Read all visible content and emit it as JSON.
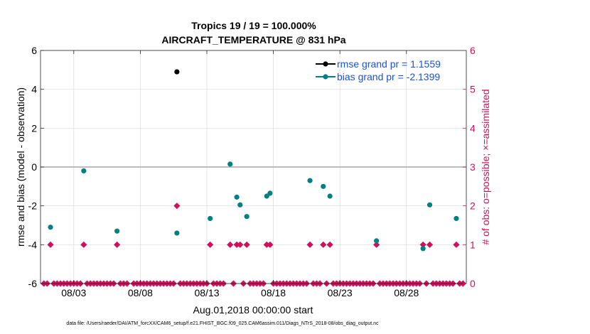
{
  "chart_data": {
    "type": "scatter",
    "title": "Tropics 19 / 19 = 100.000%",
    "subtitle": "AIRCRAFT_TEMPERATURE @ 831 hPa",
    "xlabel": "Aug.01,2018 00:00:00 start",
    "ylabel_left": "rmse and bias (model - observation)",
    "ylabel_right": "# of obs: o=possible; ×=assimilated",
    "xlim": [
      0,
      32
    ],
    "ylim_left": [
      -6,
      6
    ],
    "ylim_right": [
      0,
      6
    ],
    "x_ticks": [
      {
        "value": 2.5,
        "label": "08/03"
      },
      {
        "value": 7.5,
        "label": "08/08"
      },
      {
        "value": 12.5,
        "label": "08/13"
      },
      {
        "value": 17.5,
        "label": "08/18"
      },
      {
        "value": 22.5,
        "label": "08/23"
      },
      {
        "value": 27.5,
        "label": "08/28"
      }
    ],
    "y_ticks_left": [
      -6,
      -4,
      -2,
      0,
      2,
      4,
      6
    ],
    "y_ticks_right": [
      0,
      1,
      2,
      3,
      4,
      5,
      6
    ],
    "zero_line": 0,
    "series": [
      {
        "name": "rmse",
        "legend": "rmse grand pr = 1.1559",
        "color": "#000000",
        "axis": "left",
        "points": [
          [
            10.25,
            4.9
          ]
        ]
      },
      {
        "name": "bias",
        "legend": "bias grand pr = -2.1399",
        "color": "#008080",
        "axis": "left",
        "points": [
          [
            0.75,
            -3.1
          ],
          [
            3.25,
            -0.2
          ],
          [
            5.75,
            -3.3
          ],
          [
            10.25,
            -3.4
          ],
          [
            12.75,
            -2.65
          ],
          [
            14.25,
            0.15
          ],
          [
            14.75,
            -1.55
          ],
          [
            15.0,
            -1.95
          ],
          [
            15.5,
            -2.55
          ],
          [
            17.0,
            -1.5
          ],
          [
            17.25,
            -1.35
          ],
          [
            20.25,
            -0.7
          ],
          [
            21.25,
            -1.0
          ],
          [
            21.75,
            -1.5
          ],
          [
            25.25,
            -3.8
          ],
          [
            28.75,
            -4.2
          ],
          [
            29.25,
            -1.95
          ],
          [
            31.25,
            -2.65
          ]
        ]
      },
      {
        "name": "obs_count",
        "color": "#d0105a",
        "axis": "right",
        "points": [
          [
            0.25,
            0
          ],
          [
            0.5,
            0
          ],
          [
            0.75,
            1
          ],
          [
            1.0,
            0
          ],
          [
            1.25,
            0
          ],
          [
            1.5,
            0
          ],
          [
            1.75,
            0
          ],
          [
            2.0,
            0
          ],
          [
            2.25,
            0
          ],
          [
            2.5,
            0
          ],
          [
            2.75,
            0
          ],
          [
            3.0,
            0
          ],
          [
            3.25,
            1
          ],
          [
            3.5,
            0
          ],
          [
            3.75,
            0
          ],
          [
            4.0,
            0
          ],
          [
            4.25,
            0
          ],
          [
            4.5,
            0
          ],
          [
            4.75,
            0
          ],
          [
            5.0,
            0
          ],
          [
            5.25,
            0
          ],
          [
            5.5,
            0
          ],
          [
            5.75,
            1
          ],
          [
            6.0,
            0
          ],
          [
            6.25,
            0
          ],
          [
            6.5,
            0
          ],
          [
            7.0,
            0
          ],
          [
            7.25,
            0
          ],
          [
            7.5,
            0
          ],
          [
            7.75,
            0
          ],
          [
            8.0,
            0
          ],
          [
            8.25,
            0
          ],
          [
            8.5,
            0
          ],
          [
            8.75,
            0
          ],
          [
            9.0,
            0
          ],
          [
            9.25,
            0
          ],
          [
            9.5,
            0
          ],
          [
            9.75,
            0
          ],
          [
            10.0,
            0
          ],
          [
            10.25,
            2
          ],
          [
            10.5,
            0
          ],
          [
            10.75,
            0
          ],
          [
            11.0,
            0
          ],
          [
            11.25,
            0
          ],
          [
            11.5,
            0
          ],
          [
            11.75,
            0
          ],
          [
            12.0,
            0
          ],
          [
            12.25,
            0
          ],
          [
            12.5,
            0
          ],
          [
            12.75,
            1
          ],
          [
            13.0,
            0
          ],
          [
            13.25,
            0
          ],
          [
            13.5,
            0
          ],
          [
            13.75,
            0
          ],
          [
            14.25,
            1
          ],
          [
            14.5,
            0
          ],
          [
            14.75,
            1
          ],
          [
            15.0,
            1
          ],
          [
            15.25,
            0
          ],
          [
            15.5,
            1
          ],
          [
            15.75,
            0
          ],
          [
            16.0,
            0
          ],
          [
            16.25,
            0
          ],
          [
            16.5,
            0
          ],
          [
            16.75,
            0
          ],
          [
            17.0,
            1
          ],
          [
            17.25,
            1
          ],
          [
            17.5,
            0
          ],
          [
            17.75,
            0
          ],
          [
            18.0,
            0
          ],
          [
            18.25,
            0
          ],
          [
            18.5,
            0
          ],
          [
            18.75,
            0
          ],
          [
            19.0,
            0
          ],
          [
            19.25,
            0
          ],
          [
            19.5,
            0
          ],
          [
            19.75,
            0
          ],
          [
            20.0,
            0
          ],
          [
            20.25,
            1
          ],
          [
            20.5,
            0
          ],
          [
            20.75,
            0
          ],
          [
            21.0,
            0
          ],
          [
            21.25,
            1
          ],
          [
            21.5,
            0
          ],
          [
            21.75,
            1
          ],
          [
            22.0,
            0
          ],
          [
            22.25,
            0
          ],
          [
            22.5,
            0
          ],
          [
            22.75,
            0
          ],
          [
            23.0,
            0
          ],
          [
            23.25,
            0
          ],
          [
            23.5,
            0
          ],
          [
            23.75,
            0
          ],
          [
            24.0,
            0
          ],
          [
            24.25,
            0
          ],
          [
            24.5,
            0
          ],
          [
            24.75,
            0
          ],
          [
            25.0,
            0
          ],
          [
            25.25,
            1
          ],
          [
            25.5,
            0
          ],
          [
            25.75,
            0
          ],
          [
            26.0,
            0
          ],
          [
            26.25,
            0
          ],
          [
            26.5,
            0
          ],
          [
            26.75,
            0
          ],
          [
            27.0,
            0
          ],
          [
            27.25,
            0
          ],
          [
            27.5,
            0
          ],
          [
            27.75,
            0
          ],
          [
            28.0,
            0
          ],
          [
            28.25,
            0
          ],
          [
            28.5,
            0
          ],
          [
            28.75,
            1
          ],
          [
            29.0,
            0
          ],
          [
            29.25,
            1
          ],
          [
            29.5,
            0
          ],
          [
            29.75,
            0
          ],
          [
            30.0,
            0
          ],
          [
            30.25,
            0
          ],
          [
            30.5,
            0
          ],
          [
            30.75,
            0
          ],
          [
            31.0,
            0
          ],
          [
            31.25,
            1
          ],
          [
            31.5,
            0
          ],
          [
            31.75,
            0
          ]
        ]
      }
    ],
    "legend_position": "top-right",
    "colors": {
      "left_axis": "#000000",
      "right_axis": "#d0105a",
      "legend_text": "#1a52d9",
      "zero_line": "#a6a6a6",
      "grid": "#d9d9d9"
    }
  },
  "footer": "data file: /Users/raeder/DAI/ATM_forcXX/CAM6_setup/f.e21.FHIST_BGC.f09_025.CAM6assim.011/Diags_NTrS_2018-08/obs_diag_output.nc"
}
